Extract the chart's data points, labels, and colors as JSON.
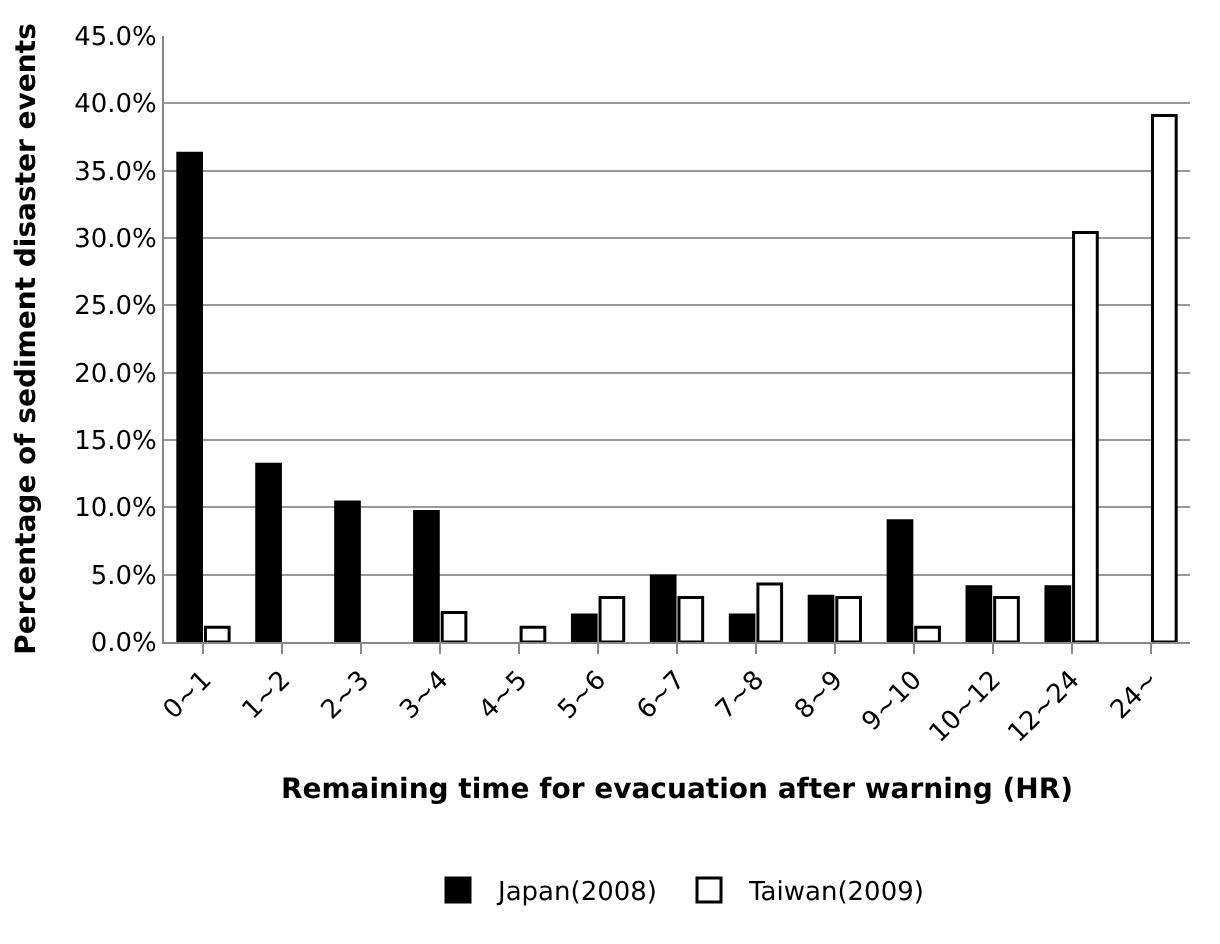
{
  "chart_data": {
    "type": "bar",
    "xlabel": "Remaining time for evacuation after warning (HR)",
    "ylabel": "Percentage of sediment disaster events",
    "categories": [
      "0~1",
      "1~2",
      "2~3",
      "3~4",
      "4~5",
      "5~6",
      "6~7",
      "7~8",
      "8~9",
      "9~10",
      "10~12",
      "12~24",
      "24~"
    ],
    "series": [
      {
        "name": "Japan(2008)",
        "color": "#000000",
        "values": [
          36.3,
          13.2,
          10.4,
          9.7,
          null,
          2.0,
          4.9,
          2.0,
          3.4,
          9.0,
          4.1,
          4.1,
          null
        ]
      },
      {
        "name": "Taiwan(2009)",
        "color": "#ffffff",
        "values": [
          1.1,
          null,
          null,
          2.2,
          1.1,
          3.3,
          3.3,
          4.3,
          3.3,
          1.1,
          3.3,
          30.4,
          39.1
        ]
      }
    ],
    "ylim": [
      0,
      45
    ],
    "yticks": [
      {
        "value": 0,
        "label": "0.0%"
      },
      {
        "value": 5,
        "label": "5.0%"
      },
      {
        "value": 10,
        "label": "10.0%"
      },
      {
        "value": 15,
        "label": "15.0%"
      },
      {
        "value": 20,
        "label": "20.0%"
      },
      {
        "value": 25,
        "label": "25.0%"
      },
      {
        "value": 30,
        "label": "30.0%"
      },
      {
        "value": 35,
        "label": "35.0%"
      },
      {
        "value": 40,
        "label": "40.0%"
      },
      {
        "value": 45,
        "label": "45.0%"
      }
    ],
    "grid": "y",
    "legend": "bottom"
  }
}
